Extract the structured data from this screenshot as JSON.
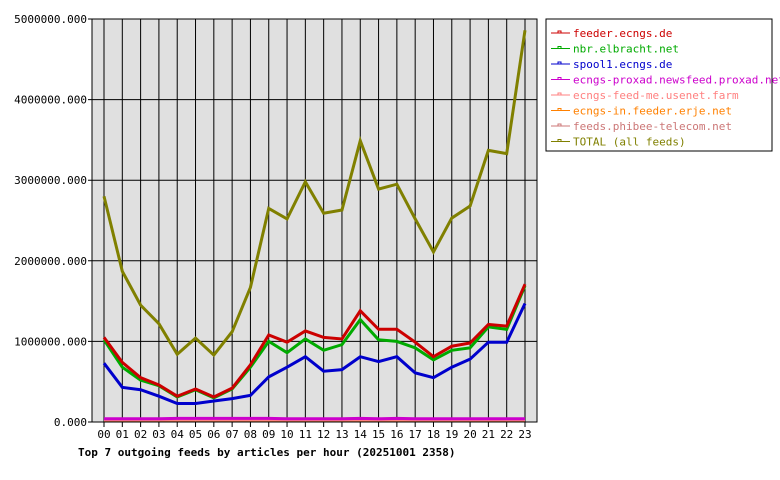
{
  "chart_data": {
    "type": "line",
    "title": "Top 7 outgoing feeds by articles per hour (20251001 2358)",
    "categories": [
      "00",
      "01",
      "02",
      "03",
      "04",
      "05",
      "06",
      "07",
      "08",
      "09",
      "10",
      "11",
      "12",
      "13",
      "14",
      "15",
      "16",
      "17",
      "18",
      "19",
      "20",
      "21",
      "22",
      "23"
    ],
    "ylim": [
      0,
      5000000
    ],
    "yticks": [
      "0.000",
      "1000000.000",
      "2000000.000",
      "3000000.000",
      "4000000.000",
      "5000000.000"
    ],
    "ytick_values": [
      0,
      1000000,
      2000000,
      3000000,
      4000000,
      5000000
    ],
    "grid": true,
    "legend_placement": "right",
    "plot_background": "#e0e0e0",
    "series": [
      {
        "name": "feeder.ecngs.de",
        "color": "#cc0000",
        "values": [
          1050000,
          740000,
          550000,
          460000,
          320000,
          410000,
          310000,
          420000,
          710000,
          1080000,
          990000,
          1130000,
          1050000,
          1030000,
          1380000,
          1150000,
          1150000,
          990000,
          810000,
          940000,
          980000,
          1210000,
          1190000,
          1710000
        ]
      },
      {
        "name": "nbr.elbracht.net",
        "color": "#00aa00",
        "values": [
          1020000,
          680000,
          520000,
          450000,
          310000,
          400000,
          300000,
          410000,
          680000,
          1000000,
          860000,
          1030000,
          890000,
          960000,
          1270000,
          1020000,
          1000000,
          920000,
          770000,
          890000,
          920000,
          1180000,
          1150000,
          1690000
        ]
      },
      {
        "name": "spool1.ecngs.de",
        "color": "#0000cc",
        "values": [
          730000,
          430000,
          400000,
          320000,
          230000,
          230000,
          260000,
          290000,
          330000,
          560000,
          680000,
          810000,
          630000,
          650000,
          810000,
          750000,
          810000,
          610000,
          550000,
          680000,
          780000,
          990000,
          990000,
          1470000
        ]
      },
      {
        "name": "ecngs-proxad.newsfeed.proxad.net",
        "color": "#cc00cc",
        "values": [
          40000,
          40000,
          40000,
          40000,
          45000,
          45000,
          45000,
          45000,
          45000,
          45000,
          40000,
          40000,
          40000,
          40000,
          45000,
          40000,
          45000,
          40000,
          40000,
          40000,
          40000,
          40000,
          40000,
          40000
        ]
      },
      {
        "name": "ecngs-feed-me.usenet.farm",
        "color": "#ff8080",
        "values": [
          30000,
          30000,
          30000,
          30000,
          30000,
          30000,
          30000,
          30000,
          30000,
          30000,
          30000,
          30000,
          30000,
          30000,
          30000,
          30000,
          30000,
          30000,
          30000,
          30000,
          30000,
          30000,
          30000,
          30000
        ]
      },
      {
        "name": "ecngs-in.feeder.erje.net",
        "color": "#ff8000",
        "values": [
          28000,
          28000,
          28000,
          28000,
          28000,
          28000,
          28000,
          28000,
          28000,
          28000,
          28000,
          28000,
          28000,
          28000,
          28000,
          28000,
          28000,
          28000,
          28000,
          28000,
          28000,
          28000,
          28000,
          28000
        ]
      },
      {
        "name": "feeds.phibee-telecom.net",
        "color": "#cc7777",
        "values": [
          25000,
          25000,
          25000,
          25000,
          25000,
          25000,
          25000,
          25000,
          25000,
          25000,
          25000,
          25000,
          25000,
          25000,
          25000,
          25000,
          25000,
          25000,
          25000,
          25000,
          25000,
          25000,
          25000,
          25000
        ]
      },
      {
        "name": "TOTAL (all feeds)",
        "color": "#808000",
        "values": [
          2800000,
          1870000,
          1450000,
          1220000,
          840000,
          1040000,
          830000,
          1120000,
          1670000,
          2650000,
          2520000,
          2980000,
          2590000,
          2630000,
          3490000,
          2890000,
          2950000,
          2520000,
          2110000,
          2530000,
          2680000,
          3370000,
          3330000,
          4860000
        ]
      }
    ]
  }
}
